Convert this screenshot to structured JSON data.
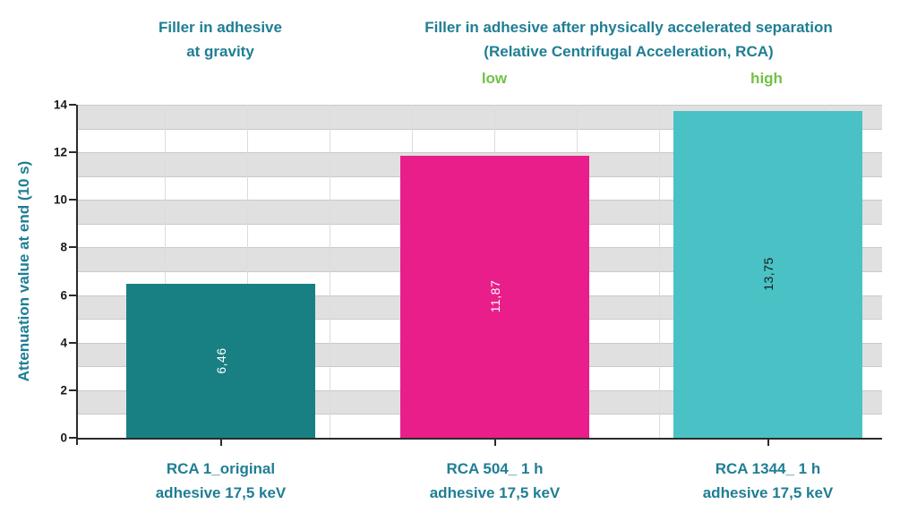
{
  "colors": {
    "background": "#ffffff",
    "teal_text": "#1f7e94",
    "green_accent": "#72c245",
    "band_gray": "#e0e0e0",
    "grid_line": "#c9c9c9",
    "v_grid_line": "#dcdcdc",
    "axis": "#2b2b2b",
    "tick_text": "#1a1a1a"
  },
  "header": {
    "left": {
      "line1": "Filler in adhesive",
      "line2": "at gravity"
    },
    "right": {
      "line1": "Filler in adhesive after physically accelerated separation",
      "line2": "(Relative Centrifugal Acceleration, RCA)"
    },
    "low": "low",
    "high": "high"
  },
  "chart_data": {
    "type": "bar",
    "title": "",
    "xlabel": "",
    "ylabel": "Attenuation value at end (10 s)",
    "ylim": [
      0,
      14
    ],
    "yticks": [
      0,
      2,
      4,
      6,
      8,
      10,
      12,
      14
    ],
    "grid": "horizontal alternating gray bands with unit gridlines, faint vertical gridlines",
    "legend_position": "none",
    "categories": [
      [
        "RCA 1_original",
        "adhesive 17,5 keV"
      ],
      [
        "RCA 504_ 1 h",
        "adhesive 17,5 keV"
      ],
      [
        "RCA 1344_ 1 h",
        "adhesive 17,5 keV"
      ]
    ],
    "values": [
      6.46,
      11.87,
      13.75
    ],
    "value_labels": [
      "6,46",
      "11,87",
      "13,75"
    ],
    "bar_colors": [
      "#188082",
      "#e91e8a",
      "#4ac2c5"
    ],
    "value_label_colors": [
      "#ffffff",
      "#ffffff",
      "#1a1a1a"
    ]
  }
}
